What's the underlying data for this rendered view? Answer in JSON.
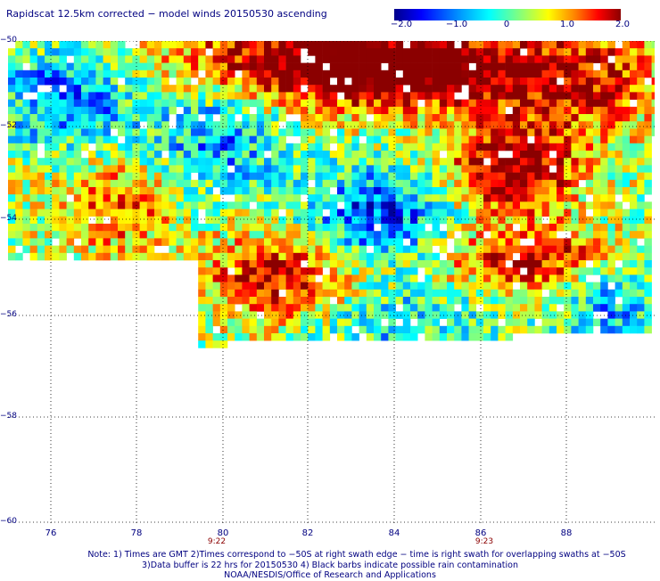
{
  "title": "Rapidscat 12.5km corrected − model winds 20150530 ascending",
  "colorbar": {
    "ticks": [
      "−2.0",
      "−1.0",
      "0",
      "1.0",
      "2.0"
    ],
    "colors": [
      "#00008b",
      "#0000ff",
      "#00a0ff",
      "#00ffff",
      "#80ff80",
      "#ffff00",
      "#ff8000",
      "#ff0000",
      "#8b0000"
    ]
  },
  "axes": {
    "y_labels": [
      "−50",
      "−52",
      "−54",
      "−56",
      "−58",
      "−60"
    ],
    "x_labels": [
      "76",
      "78",
      "80",
      "82",
      "84",
      "86",
      "88"
    ],
    "time_labels": [
      {
        "lon": "80",
        "time": "9:22"
      },
      {
        "lon": "86",
        "time": "9:23"
      }
    ]
  },
  "chart_data": {
    "type": "heatmap",
    "title": "Rapidscat 12.5km corrected − model winds 20150530 ascending",
    "xlabel": "",
    "ylabel": "",
    "x_range": [
      75.2,
      89.9
    ],
    "y_range": [
      -60,
      -50
    ],
    "x_ticks": [
      76,
      78,
      80,
      82,
      84,
      86,
      88
    ],
    "y_ticks": [
      -50,
      -52,
      -54,
      -56,
      -58,
      -60
    ],
    "value_range": [
      -2.0,
      2.0
    ],
    "grid": "dotted",
    "notes": "Wind speed difference field; swath coverage roughly lon 75.2–89.9, lat −50 to −56.6; northwest region predominantly negative (blue), northeast and east-central regions strongly positive (dark red)."
  },
  "notes": {
    "line1": "Note: 1) Times are GMT 2)Times correspond to −50S at right swath edge − time is right swath for overlapping swaths at −50S",
    "line2": "3)Data buffer is 22 hrs for 20150530 4) Black barbs indicate possible rain contamination",
    "line3": "NOAA/NESDIS/Office of Research and Applications"
  }
}
